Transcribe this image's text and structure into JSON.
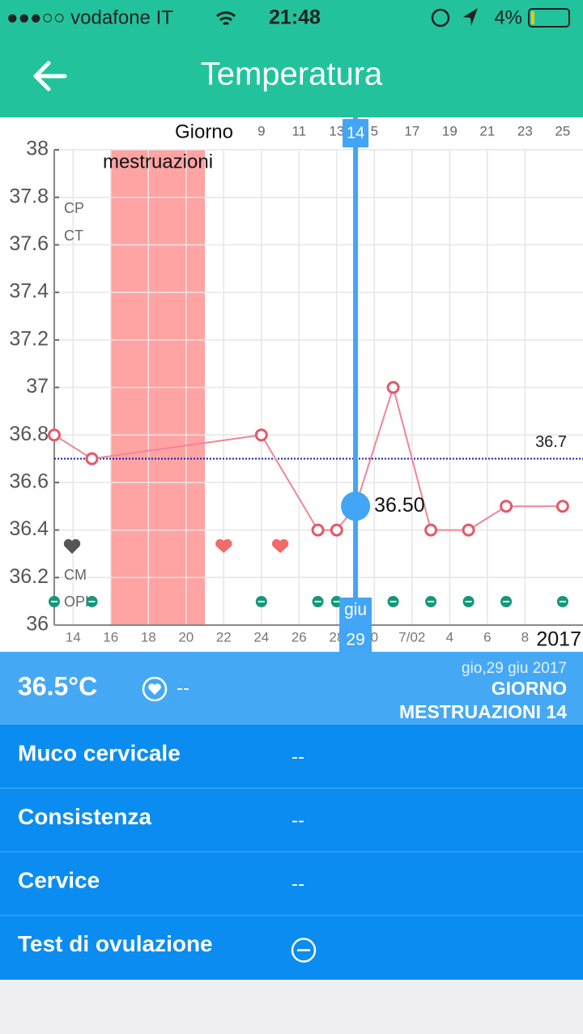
{
  "status_bar": {
    "carrier": "●●●○○ vodafone IT",
    "time": "21:48",
    "battery": "4%"
  },
  "header": {
    "title": "Temperatura"
  },
  "chart_data": {
    "type": "line",
    "x_axis_label": "Giorno",
    "year_label": "2017",
    "x": [
      -2,
      0,
      9,
      12,
      13,
      14,
      16,
      18,
      20,
      22,
      25
    ],
    "series": [
      {
        "color": "#e05a6a",
        "values": [
          36.8,
          36.7,
          36.8,
          36.4,
          36.4,
          36.5,
          37.0,
          36.4,
          36.4,
          36.5,
          36.5
        ]
      }
    ],
    "xlim": [
      -2,
      26.08
    ],
    "ylim": [
      36,
      38
    ],
    "yticks": [
      36,
      36.2,
      36.4,
      36.6,
      36.8,
      37,
      37.2,
      37.4,
      37.6,
      37.8,
      38
    ],
    "xticks": [
      9,
      11,
      13,
      {
        "value": 15,
        "label": "5"
      },
      17,
      19,
      21,
      23,
      25
    ],
    "x2ticks": [
      {
        "value": -1,
        "label": "14"
      },
      {
        "value": 1,
        "label": "16"
      },
      {
        "value": 3,
        "label": "18"
      },
      {
        "value": 5,
        "label": "20"
      },
      {
        "value": 7,
        "label": "22"
      },
      {
        "value": 9,
        "label": "24"
      },
      {
        "value": 11,
        "label": "26"
      },
      {
        "value": 13,
        "label": "28"
      },
      {
        "value": 15,
        "label": "0"
      },
      {
        "value": 17,
        "label": "7/02"
      },
      {
        "value": 19,
        "label": "4"
      },
      {
        "value": 21,
        "label": "6"
      },
      {
        "value": 23,
        "label": "8"
      }
    ],
    "grid": true,
    "reference_line": {
      "value": 36.7,
      "label": "36.7",
      "color": "#1a1aa8"
    },
    "highlight": {
      "x": 14,
      "value": 36.5,
      "value_label": "36.50",
      "month_label": "giu",
      "day_label": "29",
      "color": "#42a5f5"
    },
    "band": {
      "label": "mestruazioni",
      "range": [
        1,
        6
      ],
      "color": "#ffa3a3"
    },
    "row_labels": [
      "CP",
      "CT",
      "CM",
      "OPK"
    ],
    "intercourse_days": [
      7,
      10
    ],
    "opk_days": [
      -2,
      0,
      9,
      12,
      13,
      16,
      18,
      20,
      22,
      25
    ]
  },
  "summary": {
    "temperature": "36.5°C",
    "intercourse": "--",
    "date": "gio,29 giu 2017",
    "day_title": "GIORNO",
    "day_subtitle": "MESTRUAZIONI 14"
  },
  "details": [
    {
      "label": "Muco cervicale",
      "value": "--"
    },
    {
      "label": "Consistenza",
      "value": "--"
    },
    {
      "label": "Cervice",
      "value": "--"
    },
    {
      "label": "Test di ovulazione"
    }
  ]
}
